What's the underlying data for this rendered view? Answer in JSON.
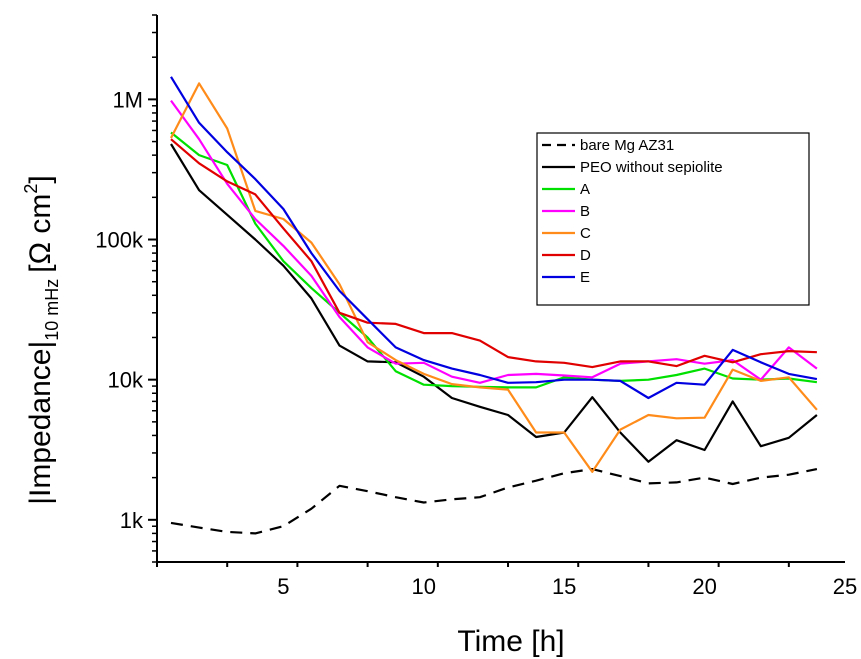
{
  "chart_data": {
    "type": "line",
    "xlabel": "Time [h]",
    "ylabel": {
      "main": "|Impedance|",
      "subscript": "10 mHz",
      "unit_open": "[Ω cm",
      "unit_sup": "2",
      "unit_close": "]"
    },
    "xlim": [
      0.5,
      25
    ],
    "ylim": [
      500,
      4000000
    ],
    "yscale": "log",
    "x_ticks": [
      5,
      10,
      15,
      20,
      25
    ],
    "x_tick_labels": [
      "5",
      "10",
      "15",
      "20",
      "25"
    ],
    "y_ticks": [
      1000,
      10000,
      100000,
      1000000
    ],
    "y_tick_labels": [
      "1k",
      "10k",
      "100k",
      "1M"
    ],
    "grid": false,
    "legend_position": "top-right",
    "series": [
      {
        "name": "bare Mg AZ31",
        "color": "#000000",
        "dash": "dashed",
        "x": [
          1,
          2,
          3,
          4,
          5,
          6,
          7,
          8,
          9,
          10,
          11,
          12,
          13,
          14,
          15,
          16,
          17,
          18,
          19,
          20,
          21,
          22,
          23,
          24
        ],
        "y": [
          950,
          880,
          820,
          800,
          900,
          1200,
          1750,
          1600,
          1450,
          1330,
          1400,
          1450,
          1700,
          1900,
          2150,
          2300,
          2050,
          1820,
          1850,
          2000,
          1800,
          2000,
          2100,
          2300
        ]
      },
      {
        "name": "PEO without sepiolite",
        "color": "#000000",
        "dash": "solid",
        "x": [
          1,
          2,
          3,
          4,
          5,
          6,
          7,
          8,
          9,
          10,
          11,
          12,
          13,
          14,
          15,
          16,
          17,
          18,
          19,
          20,
          21,
          22,
          23,
          24
        ],
        "y": [
          480000,
          225000,
          150000,
          100000,
          65000,
          38000,
          17500,
          13500,
          13300,
          10500,
          7400,
          6400,
          5600,
          3900,
          4200,
          7500,
          4200,
          2600,
          3700,
          3150,
          7000,
          3350,
          3850,
          5600
        ]
      },
      {
        "name": "A",
        "color": "#00e000",
        "dash": "solid",
        "x": [
          1,
          2,
          3,
          4,
          5,
          6,
          7,
          8,
          9,
          10,
          11,
          12,
          13,
          14,
          15,
          16,
          17,
          18,
          19,
          20,
          21,
          22,
          23,
          24
        ],
        "y": [
          580000,
          400000,
          340000,
          130000,
          70000,
          45000,
          30000,
          20000,
          11500,
          9200,
          9000,
          8900,
          8800,
          8800,
          10400,
          10000,
          9800,
          10000,
          10800,
          12000,
          10200,
          10000,
          10200,
          9600
        ]
      },
      {
        "name": "B",
        "color": "#ff00ff",
        "dash": "solid",
        "x": [
          1,
          2,
          3,
          4,
          5,
          6,
          7,
          8,
          9,
          10,
          11,
          12,
          13,
          14,
          15,
          16,
          17,
          18,
          19,
          20,
          21,
          22,
          23,
          24
        ],
        "y": [
          980000,
          520000,
          250000,
          140000,
          90000,
          55000,
          28000,
          17000,
          13000,
          13200,
          10500,
          9500,
          10800,
          11000,
          10700,
          10400,
          13000,
          13500,
          14000,
          13000,
          13800,
          10000,
          17000,
          12000
        ]
      },
      {
        "name": "C",
        "color": "#ff8c1a",
        "dash": "solid",
        "x": [
          1,
          2,
          3,
          4,
          5,
          6,
          7,
          8,
          9,
          10,
          11,
          12,
          13,
          14,
          15,
          16,
          17,
          18,
          19,
          20,
          21,
          22,
          23,
          24
        ],
        "y": [
          530000,
          1300000,
          620000,
          160000,
          140000,
          95000,
          48000,
          18500,
          13800,
          11000,
          9300,
          8800,
          8500,
          4200,
          4200,
          2200,
          4400,
          5600,
          5300,
          5350,
          11800,
          9800,
          10400,
          6100
        ]
      },
      {
        "name": "D",
        "color": "#e00000",
        "dash": "solid",
        "x": [
          1,
          2,
          3,
          4,
          5,
          6,
          7,
          8,
          9,
          10,
          11,
          12,
          13,
          14,
          15,
          16,
          17,
          18,
          19,
          20,
          21,
          22,
          23,
          24
        ],
        "y": [
          520000,
          350000,
          260000,
          210000,
          120000,
          70000,
          30000,
          25500,
          25000,
          21500,
          21500,
          19000,
          14500,
          13500,
          13200,
          12300,
          13500,
          13500,
          12500,
          14800,
          13300,
          15200,
          16000,
          15700
        ]
      },
      {
        "name": "E",
        "color": "#0000e0",
        "dash": "solid",
        "x": [
          1,
          2,
          3,
          4,
          5,
          6,
          7,
          8,
          9,
          10,
          11,
          12,
          13,
          14,
          15,
          16,
          17,
          18,
          19,
          20,
          21,
          22,
          23,
          24
        ],
        "y": [
          1450000,
          680000,
          420000,
          270000,
          165000,
          80000,
          43000,
          27000,
          17000,
          13800,
          12000,
          10800,
          9500,
          9600,
          10000,
          10000,
          9800,
          7400,
          9500,
          9200,
          16300,
          13300,
          11000,
          10100
        ]
      }
    ]
  }
}
